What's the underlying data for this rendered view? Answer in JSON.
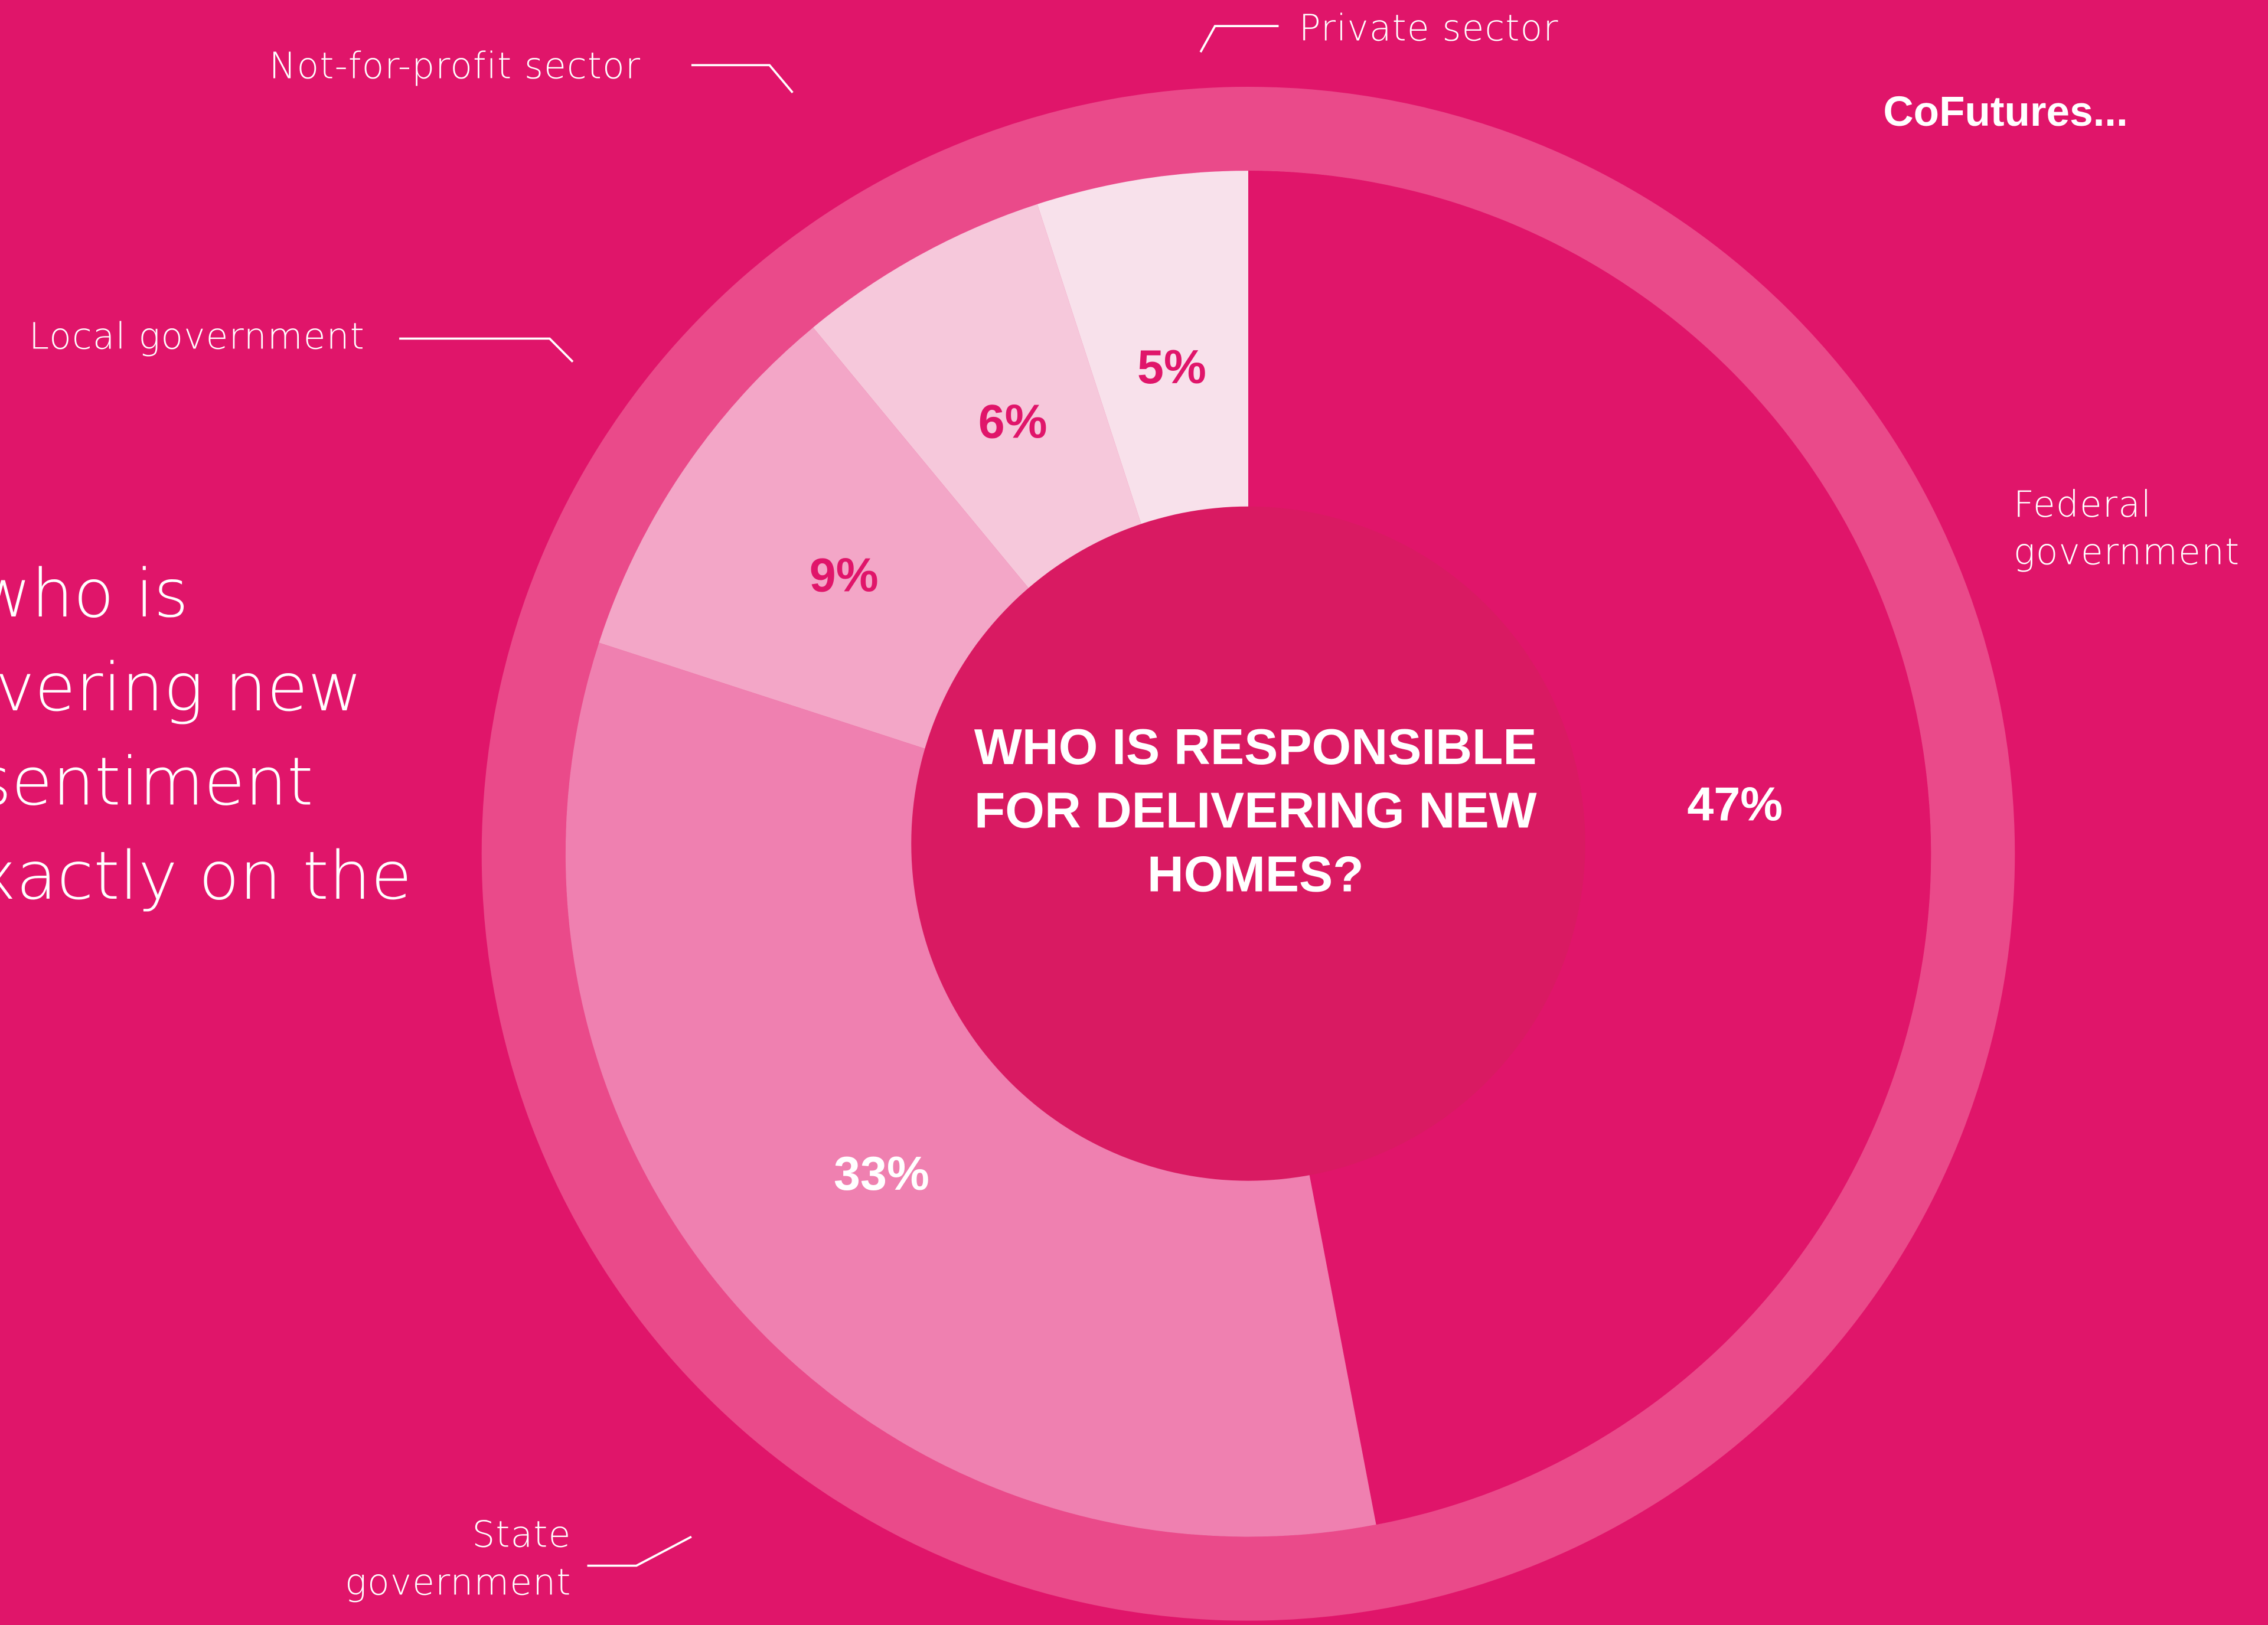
{
  "brand": "CoFutures...",
  "side_text": [
    "who is",
    "ivering new",
    "sentiment",
    "xactly on the"
  ],
  "chart_data": {
    "type": "donut",
    "title": "WHO IS RESPONSIBLE FOR DELIVERING NEW HOMES?",
    "categories": [
      "Private sector",
      "Not-for-profit sector",
      "Local government",
      "State government",
      "Federal government"
    ],
    "values": [
      5,
      6,
      9,
      33,
      47
    ],
    "value_labels": [
      "5%",
      "6%",
      "9%",
      "33%",
      "47%"
    ],
    "colors": [
      "#f8e1eb",
      "#f6c8db",
      "#f3a6c7",
      "#ef80b0",
      "#e0156a"
    ],
    "label_colors": [
      "#e0156a",
      "#e0156a",
      "#e0156a",
      "#ffffff",
      "#ffffff"
    ]
  }
}
